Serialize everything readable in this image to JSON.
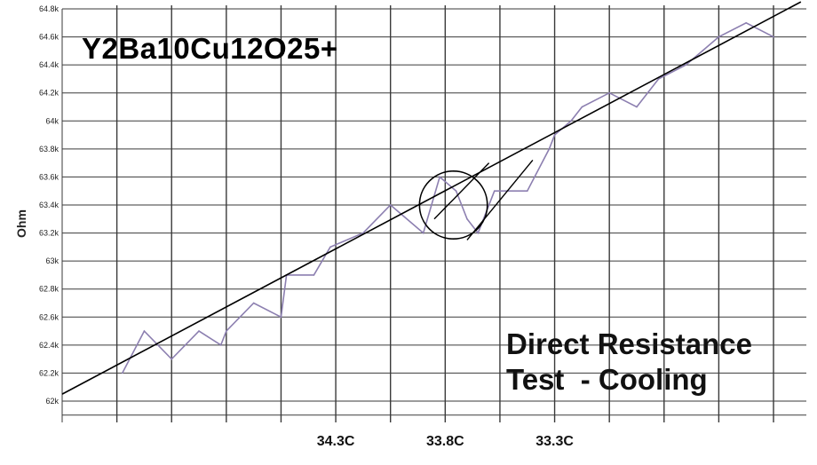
{
  "chart_data": {
    "type": "line",
    "annotation_title": "Y2Ba10Cu12O25+",
    "caption_lines": [
      "Direct Resistance",
      "Test  - Cooling"
    ],
    "ylabel": "Ohm",
    "y_ticks": [
      "62k",
      "62.2k",
      "62.4k",
      "62.6k",
      "62.8k",
      "63k",
      "63.2k",
      "63.4k",
      "63.6k",
      "63.8k",
      "64k",
      "64.2k",
      "64.4k",
      "64.6k",
      "64.8k"
    ],
    "y_tick_values": [
      62.0,
      62.2,
      62.4,
      62.6,
      62.8,
      63.0,
      63.2,
      63.4,
      63.6,
      63.8,
      64.0,
      64.2,
      64.4,
      64.6,
      64.8
    ],
    "ylim": [
      62.0,
      64.8
    ],
    "x_ticks": [
      {
        "label": "34.3C",
        "v": 4
      },
      {
        "label": "33.8C",
        "v": 6
      },
      {
        "label": "33.3C",
        "v": 8
      }
    ],
    "xlim": [
      -1,
      12.6
    ],
    "grid": true,
    "colors": {
      "series": "#8c7fb0",
      "trend": "#000000",
      "grid": "#3a3a3a"
    },
    "series": [
      {
        "x": [
          0.1,
          0.5,
          1.0,
          1.5,
          1.9,
          2.0,
          2.5,
          3.0,
          3.1,
          3.6,
          3.9,
          4.5,
          5.0,
          5.6,
          5.9,
          6.2,
          6.4,
          6.6,
          6.9,
          7.0,
          7.5,
          7.9,
          8.0,
          8.3,
          8.5,
          9.0,
          9.5,
          9.9,
          10.4,
          10.7,
          11.0,
          11.5,
          12.0
        ],
        "y": [
          62.2,
          62.5,
          62.3,
          62.5,
          62.4,
          62.5,
          62.7,
          62.6,
          62.9,
          62.9,
          63.1,
          63.2,
          63.4,
          63.2,
          63.6,
          63.5,
          63.3,
          63.2,
          63.5,
          63.5,
          63.5,
          63.8,
          63.9,
          64.0,
          64.1,
          64.2,
          64.1,
          64.3,
          64.4,
          64.5,
          64.6,
          64.7,
          64.6
        ]
      }
    ],
    "trend": {
      "x1": -1.0,
      "y1": 62.05,
      "x2": 12.5,
      "y2": 64.85
    },
    "circle_annotation": {
      "cx": 6.15,
      "cy": 63.4,
      "r": 0.62
    },
    "trend2_segment": {
      "x1": 6.4,
      "y1": 63.15,
      "x2": 7.6,
      "y2": 63.72
    },
    "trend1_extension": {
      "x1": 5.8,
      "y1": 63.3,
      "x2": 6.8,
      "y2": 63.7
    }
  }
}
